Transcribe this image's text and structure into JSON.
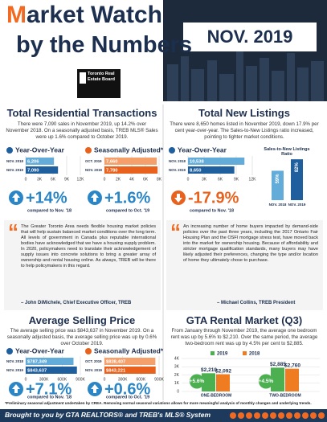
{
  "header": {
    "title_initial": "M",
    "title_rest": "arket Watch",
    "subtitle": "by the Numbers",
    "logo_text": "Toronto Real Estate Board",
    "date": "NOV. 2019"
  },
  "sections": [
    {
      "title": "Total Residential Transactions",
      "text": "There were 7,090 sales in November 2019, up 14.2% over November 2018. On a seasonally adjusted basis, TREB MLS® Sales were up 1.6% compared to October 2019."
    },
    {
      "title": "Total New Listings",
      "text": "There were 8,650 homes listed in November 2019, down 17.9% per cent year-over-year. The Sales-to-New Listings ratio increased, pointing to tighter market conditions."
    },
    {
      "title": "Average Selling Price",
      "text": "The average selling price was $843,637 in November 2019. On a seasonally adjusted basis, the average selling price was up by 0.6% over October 2019."
    },
    {
      "title": "GTA Rental Market (Q3)",
      "text": "From January through November 2019, the average one bedroom rent was up by 5.6% to $2,210. Over the same period, the average two-bedroom rent was up by 4.5% per cent to $2,885."
    }
  ],
  "quotes": [
    {
      "text": "The Greater Toronto Area needs flexible housing market policies that will help sustain balanced market conditions over the long term. All levels of government in Canada plus reputable international bodies have acknowledged that we have a housing supply problem. In 2020, policymakers need to translate their acknowledgement of supply issues into concrete solutions to bring a greater array of ownership and rental housing online. As always, TREB will be there to help policymakers in this regard.",
      "attribution": "– John DiMichele, Chief Executive Officer, TREB"
    },
    {
      "text": "An increasing number of home buyers impacted by demand-side policies over the past three years, including the 2017 Ontario Fair Housing Plan and the OSFI mortgage stress test, have moved back into the market for ownership housing. Because of affordability and stricter mortgage qualification standards, many buyers may have likely adjusted their preferences, changing the type and/or location of home they ultimately chose to purchase.",
      "attribution": "– Michael Collins, TREB President"
    }
  ],
  "footnote": "*Preliminary seasonal adjustment undertaken by CREA. Removing normal seasonal variations allows for more meaningful analysis of monthly changes and underlying trends.",
  "footer": "Brought to you by GTA REALTORS® and TREB's MLS® System",
  "chart_data": [
    {
      "type": "hbar",
      "title": "Year-Over-Year",
      "categories": [
        "NOV. 2018",
        "NOV. 2019"
      ],
      "values": [
        6206,
        7090
      ],
      "value_labels": [
        "6,206",
        "7,090"
      ],
      "colors": [
        "#63acd9",
        "#1f5f9e"
      ],
      "xlim": [
        0,
        12000
      ],
      "xticks": [
        0,
        {
          "value": 3000,
          "label": "3K"
        },
        {
          "value": 6000,
          "label": "6K"
        },
        {
          "value": 9000,
          "label": "9K"
        },
        {
          "value": 12000,
          "label": "12K"
        }
      ],
      "grid": true,
      "change": "+14%",
      "change_note": "compared to Nov. '18",
      "change_color": "#2a86c6",
      "trend": "up"
    },
    {
      "type": "hbar",
      "title": "Seasonally Adjusted*",
      "categories": [
        "OCT. 2019",
        "NOV. 2019"
      ],
      "values": [
        7660,
        7780
      ],
      "value_labels": [
        "7,660",
        "7,780"
      ],
      "colors": [
        "#f5a06a",
        "#e8621d"
      ],
      "xlim": [
        0,
        8000
      ],
      "xticks": [
        0,
        {
          "value": 2000,
          "label": "2K"
        },
        {
          "value": 4000,
          "label": "4K"
        },
        {
          "value": 6000,
          "label": "6K"
        },
        {
          "value": 8000,
          "label": "8K"
        }
      ],
      "grid": true,
      "change": "+1.6%",
      "change_note": "compared to Oct. '19",
      "change_color": "#2a86c6",
      "trend": "up"
    },
    {
      "type": "hbar",
      "title": "Year-Over-Year",
      "categories": [
        "NOV. 2018",
        "NOV. 2019"
      ],
      "values": [
        10538,
        8650
      ],
      "value_labels": [
        "10,538",
        "8,650"
      ],
      "colors": [
        "#63acd9",
        "#1f5f9e"
      ],
      "xlim": [
        0,
        12000
      ],
      "xticks": [
        0,
        {
          "value": 3000,
          "label": "3K"
        },
        {
          "value": 6000,
          "label": "6K"
        },
        {
          "value": 9000,
          "label": "9K"
        },
        {
          "value": 12000,
          "label": "12K"
        }
      ],
      "grid": true,
      "change": "-17.9%",
      "change_note": "compared to Nov. '18",
      "change_color": "#e8621d",
      "trend": "down"
    },
    {
      "type": "column",
      "title": "Sales-to-New Listings Ratio",
      "categories": [
        "NOV. 2018",
        "NOV. 2019"
      ],
      "values": [
        59,
        82
      ],
      "value_labels": [
        "59%",
        "82%"
      ],
      "colors": [
        "#63acd9",
        "#1f5f9e"
      ]
    },
    {
      "type": "hbar",
      "title": "Year-Over-Year",
      "categories": [
        "NOV. 2018",
        "NOV. 2019"
      ],
      "values": [
        787349,
        843637
      ],
      "value_labels": [
        "$787,349",
        "$843,637"
      ],
      "colors": [
        "#63acd9",
        "#1f5f9e"
      ],
      "xlim": [
        0,
        900000
      ],
      "xticks": [
        0,
        {
          "value": 300000,
          "label": "300K"
        },
        {
          "value": 600000,
          "label": "600K"
        },
        {
          "value": 900000,
          "label": "900K"
        }
      ],
      "grid": true,
      "change": "+7.1%",
      "change_note": "compared to Nov. '18",
      "change_color": "#2a86c6",
      "trend": "up"
    },
    {
      "type": "hbar",
      "title": "Seasonally Adjusted*",
      "categories": [
        "OCT. 2019",
        "NOV. 2019"
      ],
      "values": [
        838407,
        843221
      ],
      "value_labels": [
        "$838,407",
        "$843,221"
      ],
      "colors": [
        "#f5a06a",
        "#e8621d"
      ],
      "xlim": [
        0,
        900000
      ],
      "xticks": [
        0,
        {
          "value": 300000,
          "label": "300K"
        },
        {
          "value": 600000,
          "label": "600K"
        },
        {
          "value": 900000,
          "label": "900K"
        }
      ],
      "grid": true,
      "change": "+0.6%",
      "change_note": "compared to Oct. '19",
      "change_color": "#2a86c6",
      "trend": "up"
    },
    {
      "type": "grouped_bar",
      "categories": [
        "ONE-BEDROOM",
        "TWO-BEDROOM"
      ],
      "series": [
        {
          "name": "2019",
          "color": "#4caf50",
          "values": [
            2210,
            2885
          ],
          "value_labels": [
            "$2,210",
            "$2,885"
          ]
        },
        {
          "name": "2018",
          "color": "#f07c22",
          "values": [
            2092,
            2760
          ],
          "value_labels": [
            "$2,092",
            "$2,760"
          ]
        }
      ],
      "annotations": [
        "+5.6%",
        "+4.5%"
      ],
      "ylim": [
        0,
        4000
      ],
      "yticks": [
        0,
        {
          "value": 1000,
          "label": "1K"
        },
        {
          "value": 2000,
          "label": "2K"
        },
        {
          "value": 3000,
          "label": "3K"
        },
        {
          "value": 4000,
          "label": "4K"
        }
      ],
      "grid": true
    }
  ]
}
